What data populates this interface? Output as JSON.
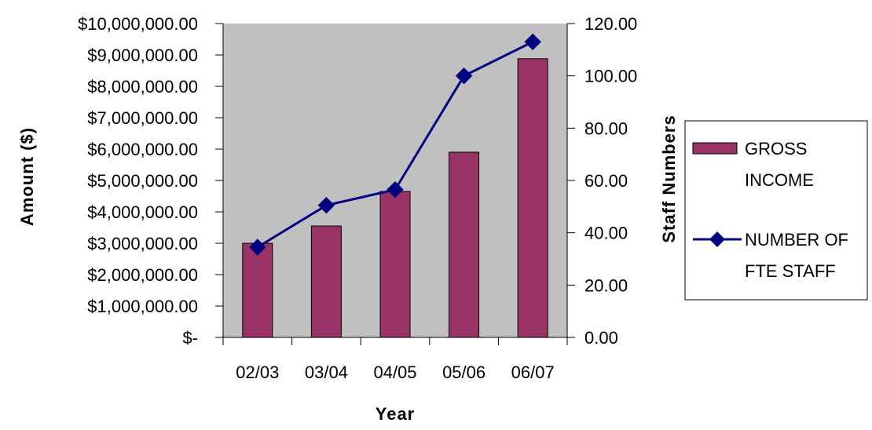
{
  "chart_data": {
    "type": "bar",
    "categories": [
      "02/03",
      "03/04",
      "04/05",
      "05/06",
      "06/07"
    ],
    "series": [
      {
        "name": "GROSS INCOME",
        "type": "bar",
        "axis": "left",
        "values": [
          3000000,
          3550000,
          4650000,
          5900000,
          8880000
        ]
      },
      {
        "name": "NUMBER OF FTE STAFF",
        "type": "line",
        "axis": "right",
        "values": [
          34.5,
          50.5,
          56.5,
          100,
          113
        ]
      }
    ],
    "legend_lines": [
      [
        "GROSS",
        "INCOME"
      ],
      [
        "NUMBER OF",
        "FTE STAFF"
      ]
    ],
    "xlabel": "Year",
    "ylabel": "Amount ($)",
    "y2label": "Staff Numbers",
    "ylim": [
      0,
      10000000
    ],
    "y2lim": [
      0,
      120
    ],
    "yticks": [
      "$-",
      "$1,000,000.00",
      "$2,000,000.00",
      "$3,000,000.00",
      "$4,000,000.00",
      "$5,000,000.00",
      "$6,000,000.00",
      "$7,000,000.00",
      "$8,000,000.00",
      "$9,000,000.00",
      "$10,000,000.00"
    ],
    "y2ticks": [
      "0.00",
      "20.00",
      "40.00",
      "60.00",
      "80.00",
      "100.00",
      "120.00"
    ],
    "legend_position": "right",
    "grid": false,
    "colors": {
      "plot_background": "#c0c0c0",
      "bar_fill": "#993366",
      "line": "#000080",
      "marker": "#000080"
    }
  }
}
